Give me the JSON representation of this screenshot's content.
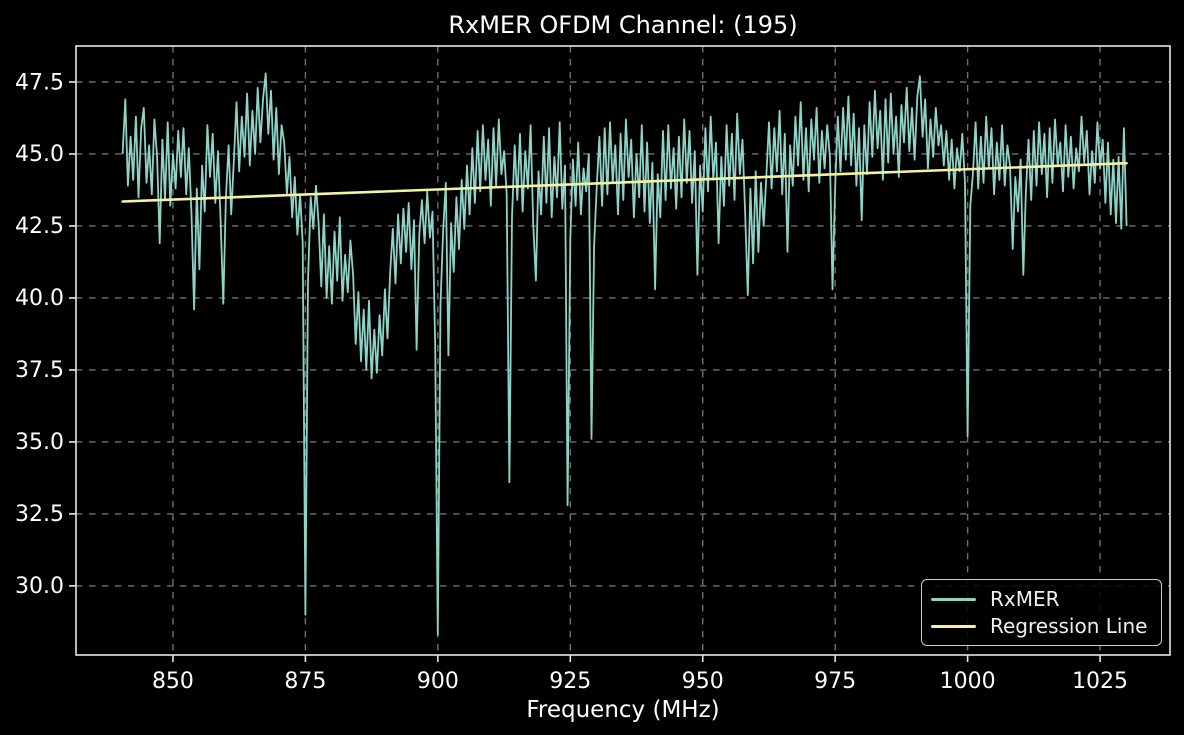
{
  "page": {
    "background": "#000000"
  },
  "chart_data": {
    "type": "line",
    "title": "RxMER OFDM Channel: (195)",
    "xlabel": "Frequency (MHz)",
    "ylabel": "",
    "xlim": [
      831.7,
      1038.2
    ],
    "ylim": [
      27.6,
      48.75
    ],
    "x_ticks": [
      850,
      875,
      900,
      925,
      950,
      975,
      1000,
      1025
    ],
    "x_tick_labels": [
      "850",
      "875",
      "900",
      "925",
      "950",
      "975",
      "1000",
      "1025"
    ],
    "y_ticks": [
      30.0,
      32.5,
      35.0,
      37.5,
      40.0,
      42.5,
      45.0,
      47.5
    ],
    "y_tick_labels": [
      "30.0",
      "32.5",
      "35.0",
      "37.5",
      "40.0",
      "42.5",
      "45.0",
      "47.5"
    ],
    "grid": true,
    "legend_position": "lower right",
    "colors": {
      "background": "#000000",
      "text": "#ffffff",
      "grid": "#6f6f6f",
      "spine": "#e6e6e6",
      "legend_border": "#cccccc"
    },
    "series": [
      {
        "name": "RxMER",
        "color": "#8dd3c7",
        "x_start": 840.5,
        "x_step": 0.5,
        "values": [
          45.0,
          46.9,
          43.9,
          45.6,
          44.1,
          46.3,
          43.5,
          45.9,
          46.6,
          44.0,
          45.3,
          43.6,
          46.2,
          44.9,
          41.9,
          45.5,
          43.4,
          46.1,
          43.2,
          45.0,
          43.8,
          45.8,
          44.2,
          45.9,
          43.6,
          45.2,
          42.9,
          39.6,
          43.8,
          41.0,
          44.6,
          43.0,
          46.0,
          44.2,
          45.7,
          43.3,
          45.1,
          42.7,
          39.8,
          43.5,
          45.3,
          42.9,
          44.8,
          46.8,
          44.4,
          46.3,
          44.9,
          47.1,
          44.6,
          46.5,
          45.0,
          47.3,
          45.4,
          46.9,
          47.8,
          45.7,
          47.2,
          44.8,
          46.6,
          44.3,
          46.0,
          45.4,
          43.6,
          44.9,
          42.8,
          44.2,
          42.2,
          43.6,
          41.9,
          29.0,
          40.6,
          43.5,
          42.4,
          43.9,
          42.6,
          40.4,
          42.9,
          40.0,
          41.8,
          39.8,
          42.3,
          40.6,
          42.8,
          39.9,
          41.5,
          40.2,
          42.0,
          40.8,
          38.4,
          40.2,
          37.8,
          39.6,
          37.5,
          39.9,
          37.2,
          38.9,
          37.4,
          39.4,
          38.0,
          40.3,
          38.6,
          40.9,
          42.4,
          40.5,
          42.9,
          41.2,
          43.1,
          41.6,
          43.3,
          41.0,
          42.7,
          38.2,
          42.2,
          43.4,
          41.9,
          43.7,
          42.1,
          43.0,
          38.3,
          28.3,
          39.8,
          42.3,
          44.0,
          38.0,
          42.6,
          40.9,
          43.5,
          41.7,
          44.1,
          42.4,
          44.6,
          42.9,
          45.2,
          43.3,
          45.8,
          43.7,
          46.0,
          44.1,
          45.5,
          43.2,
          45.9,
          43.9,
          46.2,
          44.3,
          45.1,
          43.6,
          33.6,
          42.8,
          45.3,
          43.4,
          45.7,
          43.0,
          45.1,
          43.8,
          46.0,
          42.6,
          40.6,
          44.4,
          42.9,
          45.6,
          43.3,
          45.9,
          42.8,
          44.9,
          43.5,
          46.1,
          43.1,
          44.6,
          32.8,
          42.0,
          44.8,
          43.2,
          45.4,
          42.9,
          44.5,
          43.7,
          45.0,
          35.1,
          41.8,
          43.9,
          45.6,
          43.2,
          45.9,
          43.6,
          46.1,
          44.0,
          45.3,
          42.9,
          45.7,
          43.4,
          46.2,
          44.2,
          45.5,
          42.8,
          45.0,
          43.5,
          46.0,
          43.0,
          45.4,
          42.6,
          44.7,
          40.3,
          44.3,
          42.8,
          45.8,
          43.4,
          46.0,
          43.8,
          45.2,
          43.1,
          45.6,
          43.5,
          46.2,
          44.0,
          45.8,
          43.3,
          45.1,
          40.8,
          44.6,
          43.0,
          45.9,
          43.7,
          46.3,
          44.1,
          45.4,
          41.9,
          44.9,
          43.2,
          46.0,
          43.9,
          45.7,
          43.4,
          46.4,
          44.3,
          45.5,
          43.0,
          40.1,
          43.8,
          41.2,
          44.4,
          41.6,
          44.0,
          42.5,
          44.2,
          46.1,
          43.8,
          45.9,
          44.4,
          46.5,
          43.6,
          45.7,
          41.6,
          45.3,
          43.9,
          46.3,
          44.6,
          46.8,
          44.1,
          45.9,
          43.7,
          46.2,
          44.8,
          46.6,
          44.0,
          45.8,
          44.5,
          46.0,
          44.9,
          40.3,
          43.9,
          46.3,
          44.4,
          46.6,
          44.8,
          47.0,
          44.6,
          46.4,
          43.9,
          45.9,
          42.7,
          46.0,
          44.3,
          46.8,
          44.9,
          47.2,
          45.2,
          46.5,
          44.1,
          46.9,
          44.7,
          47.1,
          45.0,
          46.3,
          44.2,
          46.7,
          45.4,
          47.3,
          45.1,
          46.6,
          44.8,
          47.0,
          47.7,
          45.6,
          46.9,
          44.5,
          46.2,
          44.9,
          46.6,
          45.3,
          46.0,
          44.6,
          45.8,
          44.1,
          45.5,
          43.8,
          45.2,
          44.4,
          45.7,
          44.0,
          35.2,
          43.2,
          44.3,
          46.1,
          43.8,
          45.6,
          44.0,
          46.3,
          44.5,
          45.9,
          43.6,
          45.4,
          44.1,
          46.0,
          43.9,
          45.3,
          44.6,
          41.7,
          44.2,
          43.0,
          44.8,
          40.8,
          43.7,
          45.5,
          43.4,
          45.8,
          43.9,
          46.1,
          44.3,
          45.7,
          43.5,
          45.9,
          44.0,
          46.2,
          44.6,
          45.4,
          43.7,
          46.0,
          44.2,
          45.6,
          43.8,
          45.2,
          44.4,
          46.3,
          44.7,
          45.8,
          43.6,
          45.1,
          44.0,
          46.1,
          44.5,
          45.5,
          43.3,
          45.4,
          42.9,
          44.8,
          42.6,
          44.9,
          42.4,
          45.9,
          42.5
        ]
      },
      {
        "name": "Regression Line",
        "color": "#f6f2a4",
        "x": [
          840.5,
          1030.0
        ],
        "y": [
          43.35,
          44.68
        ]
      }
    ]
  }
}
